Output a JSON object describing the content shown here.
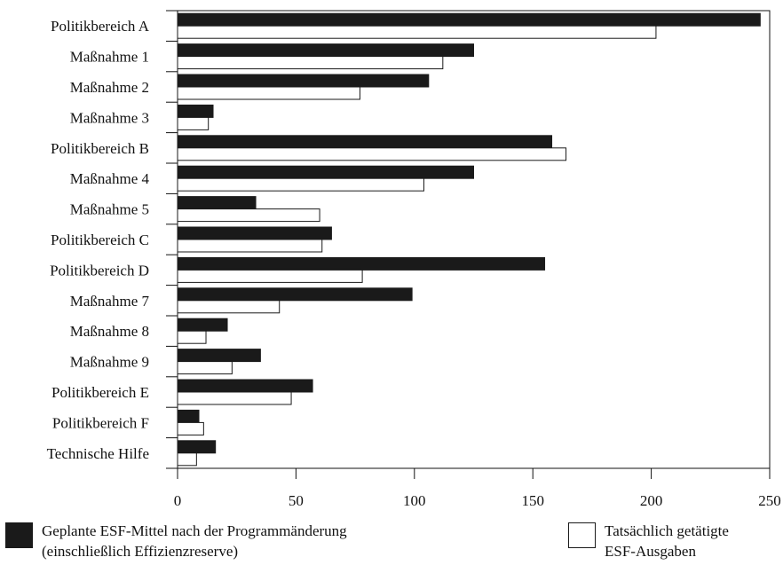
{
  "chart_data": {
    "type": "bar",
    "orientation": "horizontal",
    "categories": [
      "Politikbereich A",
      "Maßnahme 1",
      "Maßnahme 2",
      "Maßnahme 3",
      "Politikbereich B",
      "Maßnahme 4",
      "Maßnahme 5",
      "Politikbereich C",
      "Politikbereich D",
      "Maßnahme 7",
      "Maßnahme 8",
      "Maßnahme 9",
      "Politikbereich E",
      "Politikbereich F",
      "Technische Hilfe"
    ],
    "series": [
      {
        "name": "Geplante ESF-Mittel nach der Programmänderung (einschließlich Effizienzreserve)",
        "color": "#1a1a1a",
        "values": [
          246,
          125,
          106,
          15,
          158,
          125,
          33,
          65,
          155,
          99,
          21,
          35,
          57,
          9,
          16
        ]
      },
      {
        "name": "Tatsächlich getätigte ESF-Ausgaben",
        "color": "#ffffff",
        "values": [
          202,
          112,
          77,
          13,
          164,
          104,
          60,
          61,
          78,
          43,
          12,
          23,
          48,
          11,
          8
        ]
      }
    ],
    "xlim": [
      0,
      250
    ],
    "xticks": [
      0,
      50,
      100,
      150,
      200,
      250
    ],
    "grid": false,
    "legend_position": "bottom"
  },
  "legend": {
    "planned_line1": "Geplante ESF-Mittel nach der Programmänderung",
    "planned_line2": "(einschließlich Effizienzreserve)",
    "actual_line1": "Tatsächlich getätigte",
    "actual_line2": "ESF-Ausgaben"
  }
}
